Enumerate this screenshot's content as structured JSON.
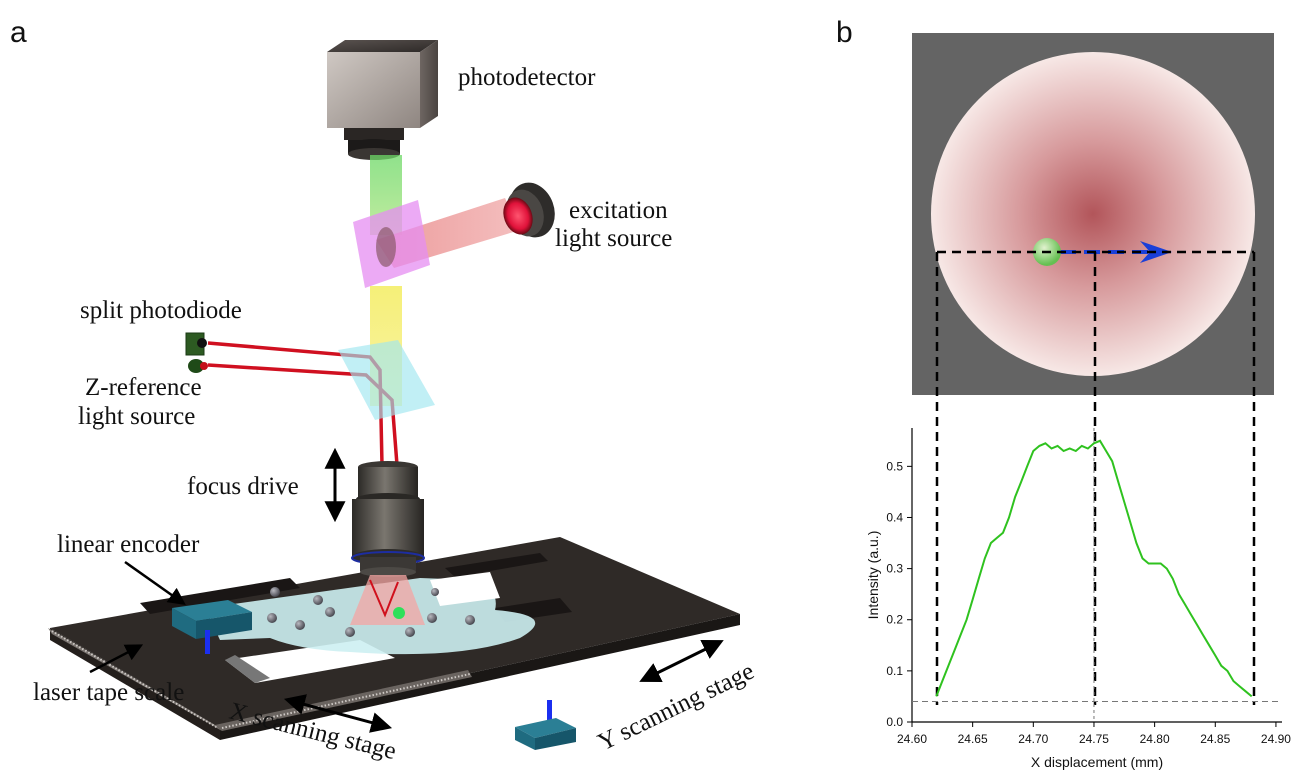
{
  "panel_a": {
    "letter": "a",
    "labels": {
      "photodetector": "photodetector",
      "excitation_line1": "excitation",
      "excitation_line2": "light source",
      "split_photodiode": "split photodiode",
      "zref_line1": "Z-reference",
      "zref_line2": "light source",
      "focus_drive": "focus drive",
      "linear_encoder": "linear encoder",
      "laser_tape_scale": "laser tape scale",
      "x_scanning_stage": "X scanning stage",
      "y_scanning_stage": "Y scanning stage"
    }
  },
  "panel_b": {
    "letter": "b"
  },
  "chart_data": {
    "type": "line",
    "xlabel": "X displacement (mm)",
    "ylabel": "Intensity (a.u.)",
    "xlim": [
      24.6,
      24.905
    ],
    "ylim": [
      0.0,
      0.575
    ],
    "xticks": [
      "24.60",
      "24.65",
      "24.70",
      "24.75",
      "24.80",
      "24.85",
      "24.90"
    ],
    "yticks": [
      "0.0",
      "0.1",
      "0.2",
      "0.3",
      "0.4",
      "0.5"
    ],
    "grid": false,
    "baseline": 0.04,
    "markers_x": [
      24.62,
      24.75,
      24.88
    ],
    "series": [
      {
        "color": "#2fc21f",
        "x": [
          24.62,
          24.625,
          24.63,
          24.635,
          24.64,
          24.645,
          24.65,
          24.655,
          24.66,
          24.665,
          24.67,
          24.675,
          24.68,
          24.685,
          24.69,
          24.695,
          24.7,
          24.705,
          24.71,
          24.715,
          24.72,
          24.725,
          24.73,
          24.735,
          24.74,
          24.745,
          24.75,
          24.755,
          24.76,
          24.765,
          24.77,
          24.775,
          24.78,
          24.785,
          24.79,
          24.795,
          24.8,
          24.805,
          24.81,
          24.815,
          24.82,
          24.825,
          24.83,
          24.835,
          24.84,
          24.845,
          24.85,
          24.855,
          24.86,
          24.865,
          24.87,
          24.875,
          24.88
        ],
        "y": [
          0.05,
          0.08,
          0.11,
          0.14,
          0.17,
          0.2,
          0.24,
          0.28,
          0.32,
          0.35,
          0.36,
          0.37,
          0.4,
          0.44,
          0.47,
          0.5,
          0.53,
          0.54,
          0.545,
          0.535,
          0.54,
          0.53,
          0.535,
          0.53,
          0.54,
          0.535,
          0.545,
          0.55,
          0.53,
          0.51,
          0.47,
          0.43,
          0.39,
          0.35,
          0.32,
          0.31,
          0.31,
          0.31,
          0.3,
          0.28,
          0.25,
          0.23,
          0.21,
          0.19,
          0.17,
          0.15,
          0.13,
          0.11,
          0.1,
          0.08,
          0.07,
          0.06,
          0.05
        ]
      }
    ]
  }
}
